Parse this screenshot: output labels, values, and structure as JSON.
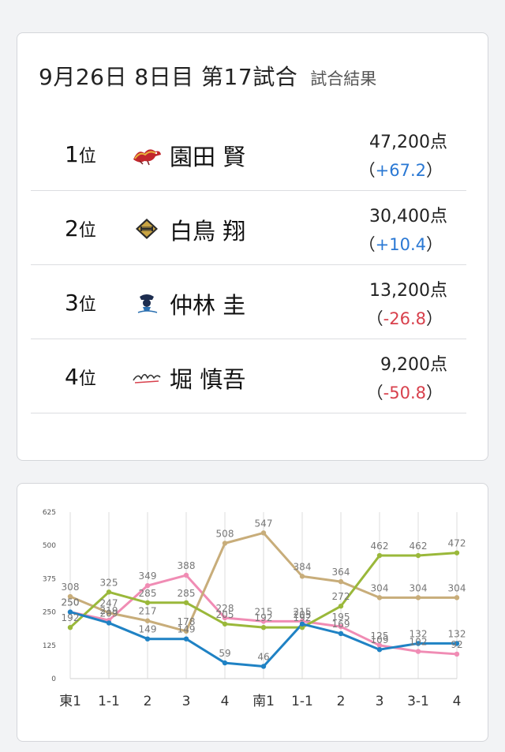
{
  "header": {
    "title": "9月26日 8日目 第17試合",
    "subtitle": "試合結果"
  },
  "results": [
    {
      "rank": "1",
      "rank_suffix": "位",
      "team_icon": "dragon-team-logo-icon",
      "player": "園田 賢",
      "score": "47,200点",
      "diff_open": "（",
      "diff": "+67.2",
      "diff_close": "）",
      "diff_sign": "pos"
    },
    {
      "rank": "2",
      "rank_suffix": "位",
      "team_icon": "gold-shield-team-logo-icon",
      "player": "白鳥 翔",
      "score": "30,400点",
      "diff_open": "（",
      "diff": "+10.4",
      "diff_close": "）",
      "diff_sign": "pos"
    },
    {
      "rank": "3",
      "rank_suffix": "位",
      "team_icon": "pirate-team-logo-icon",
      "player": "仲林 圭",
      "score": "13,200点",
      "diff_open": "（",
      "diff": "-26.8",
      "diff_close": "）",
      "diff_sign": "neg"
    },
    {
      "rank": "4",
      "rank_suffix": "位",
      "team_icon": "script-team-logo-icon",
      "player": "堀 慎吾",
      "score": "9,200点",
      "diff_open": "（",
      "diff": "-50.8",
      "diff_close": "）",
      "diff_sign": "neg"
    }
  ],
  "colors": {
    "positive": "#2a78d4",
    "negative": "#d8404c",
    "series_pink": "#f08cb4",
    "series_tan": "#c8ad7a",
    "series_green": "#9ab83a",
    "series_blue": "#1f82c4"
  },
  "chart_data": {
    "type": "line",
    "categories": [
      "東1",
      "1-1",
      "2",
      "3",
      "4",
      "南1",
      "1-1",
      "2",
      "3",
      "3-1",
      "4"
    ],
    "y_ticks": [
      0,
      125,
      250,
      375,
      500,
      625
    ],
    "ylim": [
      0,
      625
    ],
    "grid": "vertical",
    "legend": "none",
    "series": [
      {
        "color": "#f08cb4",
        "values": [
          250,
          219,
          349,
          388,
          228,
          215,
          215,
          195,
          125,
          102,
          92
        ]
      },
      {
        "color": "#c8ad7a",
        "values": [
          308,
          247,
          217,
          178,
          508,
          547,
          384,
          364,
          304,
          304,
          304
        ]
      },
      {
        "color": "#9ab83a",
        "values": [
          192,
          325,
          285,
          285,
          205,
          192,
          192,
          272,
          462,
          462,
          472
        ]
      },
      {
        "color": "#1f82c4",
        "values": [
          250,
          209,
          149,
          149,
          59,
          46,
          205,
          169,
          109,
          132,
          132
        ]
      }
    ]
  }
}
